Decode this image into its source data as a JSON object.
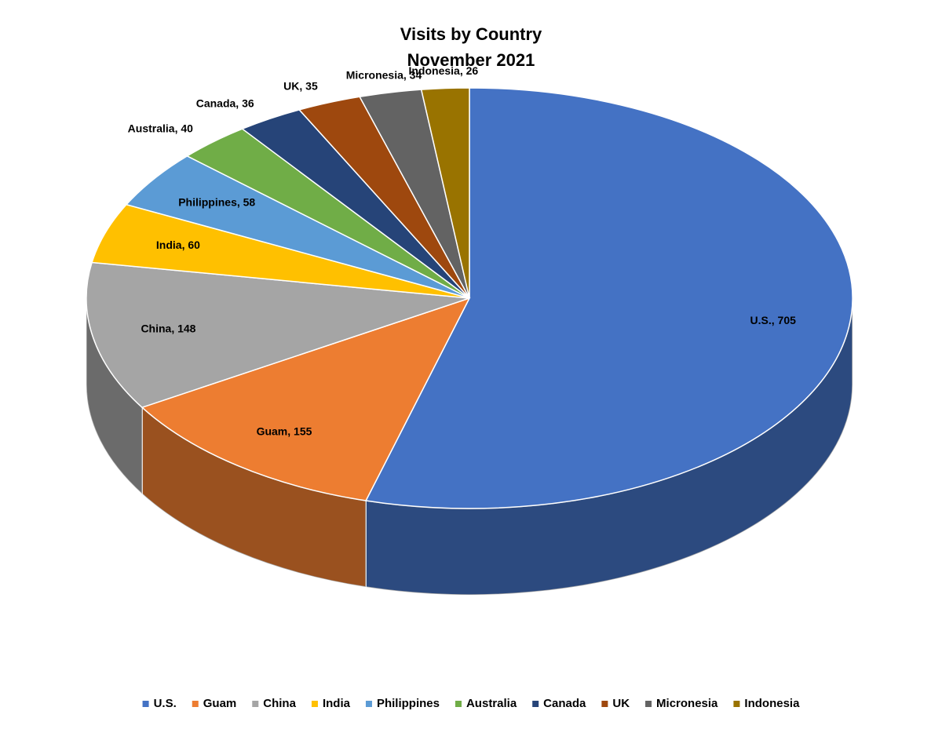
{
  "chart_data": {
    "type": "pie",
    "title": "Visits by Country",
    "subtitle": "November 2021",
    "categories": [
      "U.S.",
      "Guam",
      "China",
      "India",
      "Philippines",
      "Australia",
      "Canada",
      "UK",
      "Micronesia",
      "Indonesia"
    ],
    "values": [
      705,
      155,
      148,
      60,
      58,
      40,
      36,
      35,
      34,
      26
    ],
    "value_labels": [
      "U.S., 705",
      "Guam, 155",
      "China, 148",
      "India, 60",
      "Philippines, 58",
      "Australia, 40",
      "Canada, 36",
      "UK, 35",
      "Micronesia, 34",
      "Indonesia, 26"
    ],
    "colors": [
      "#4472c4",
      "#ed7d31",
      "#a5a5a5",
      "#ffc000",
      "#5b9bd5",
      "#70ad47",
      "#264478",
      "#9e480e",
      "#636363",
      "#997300"
    ],
    "legend": "bottom"
  }
}
